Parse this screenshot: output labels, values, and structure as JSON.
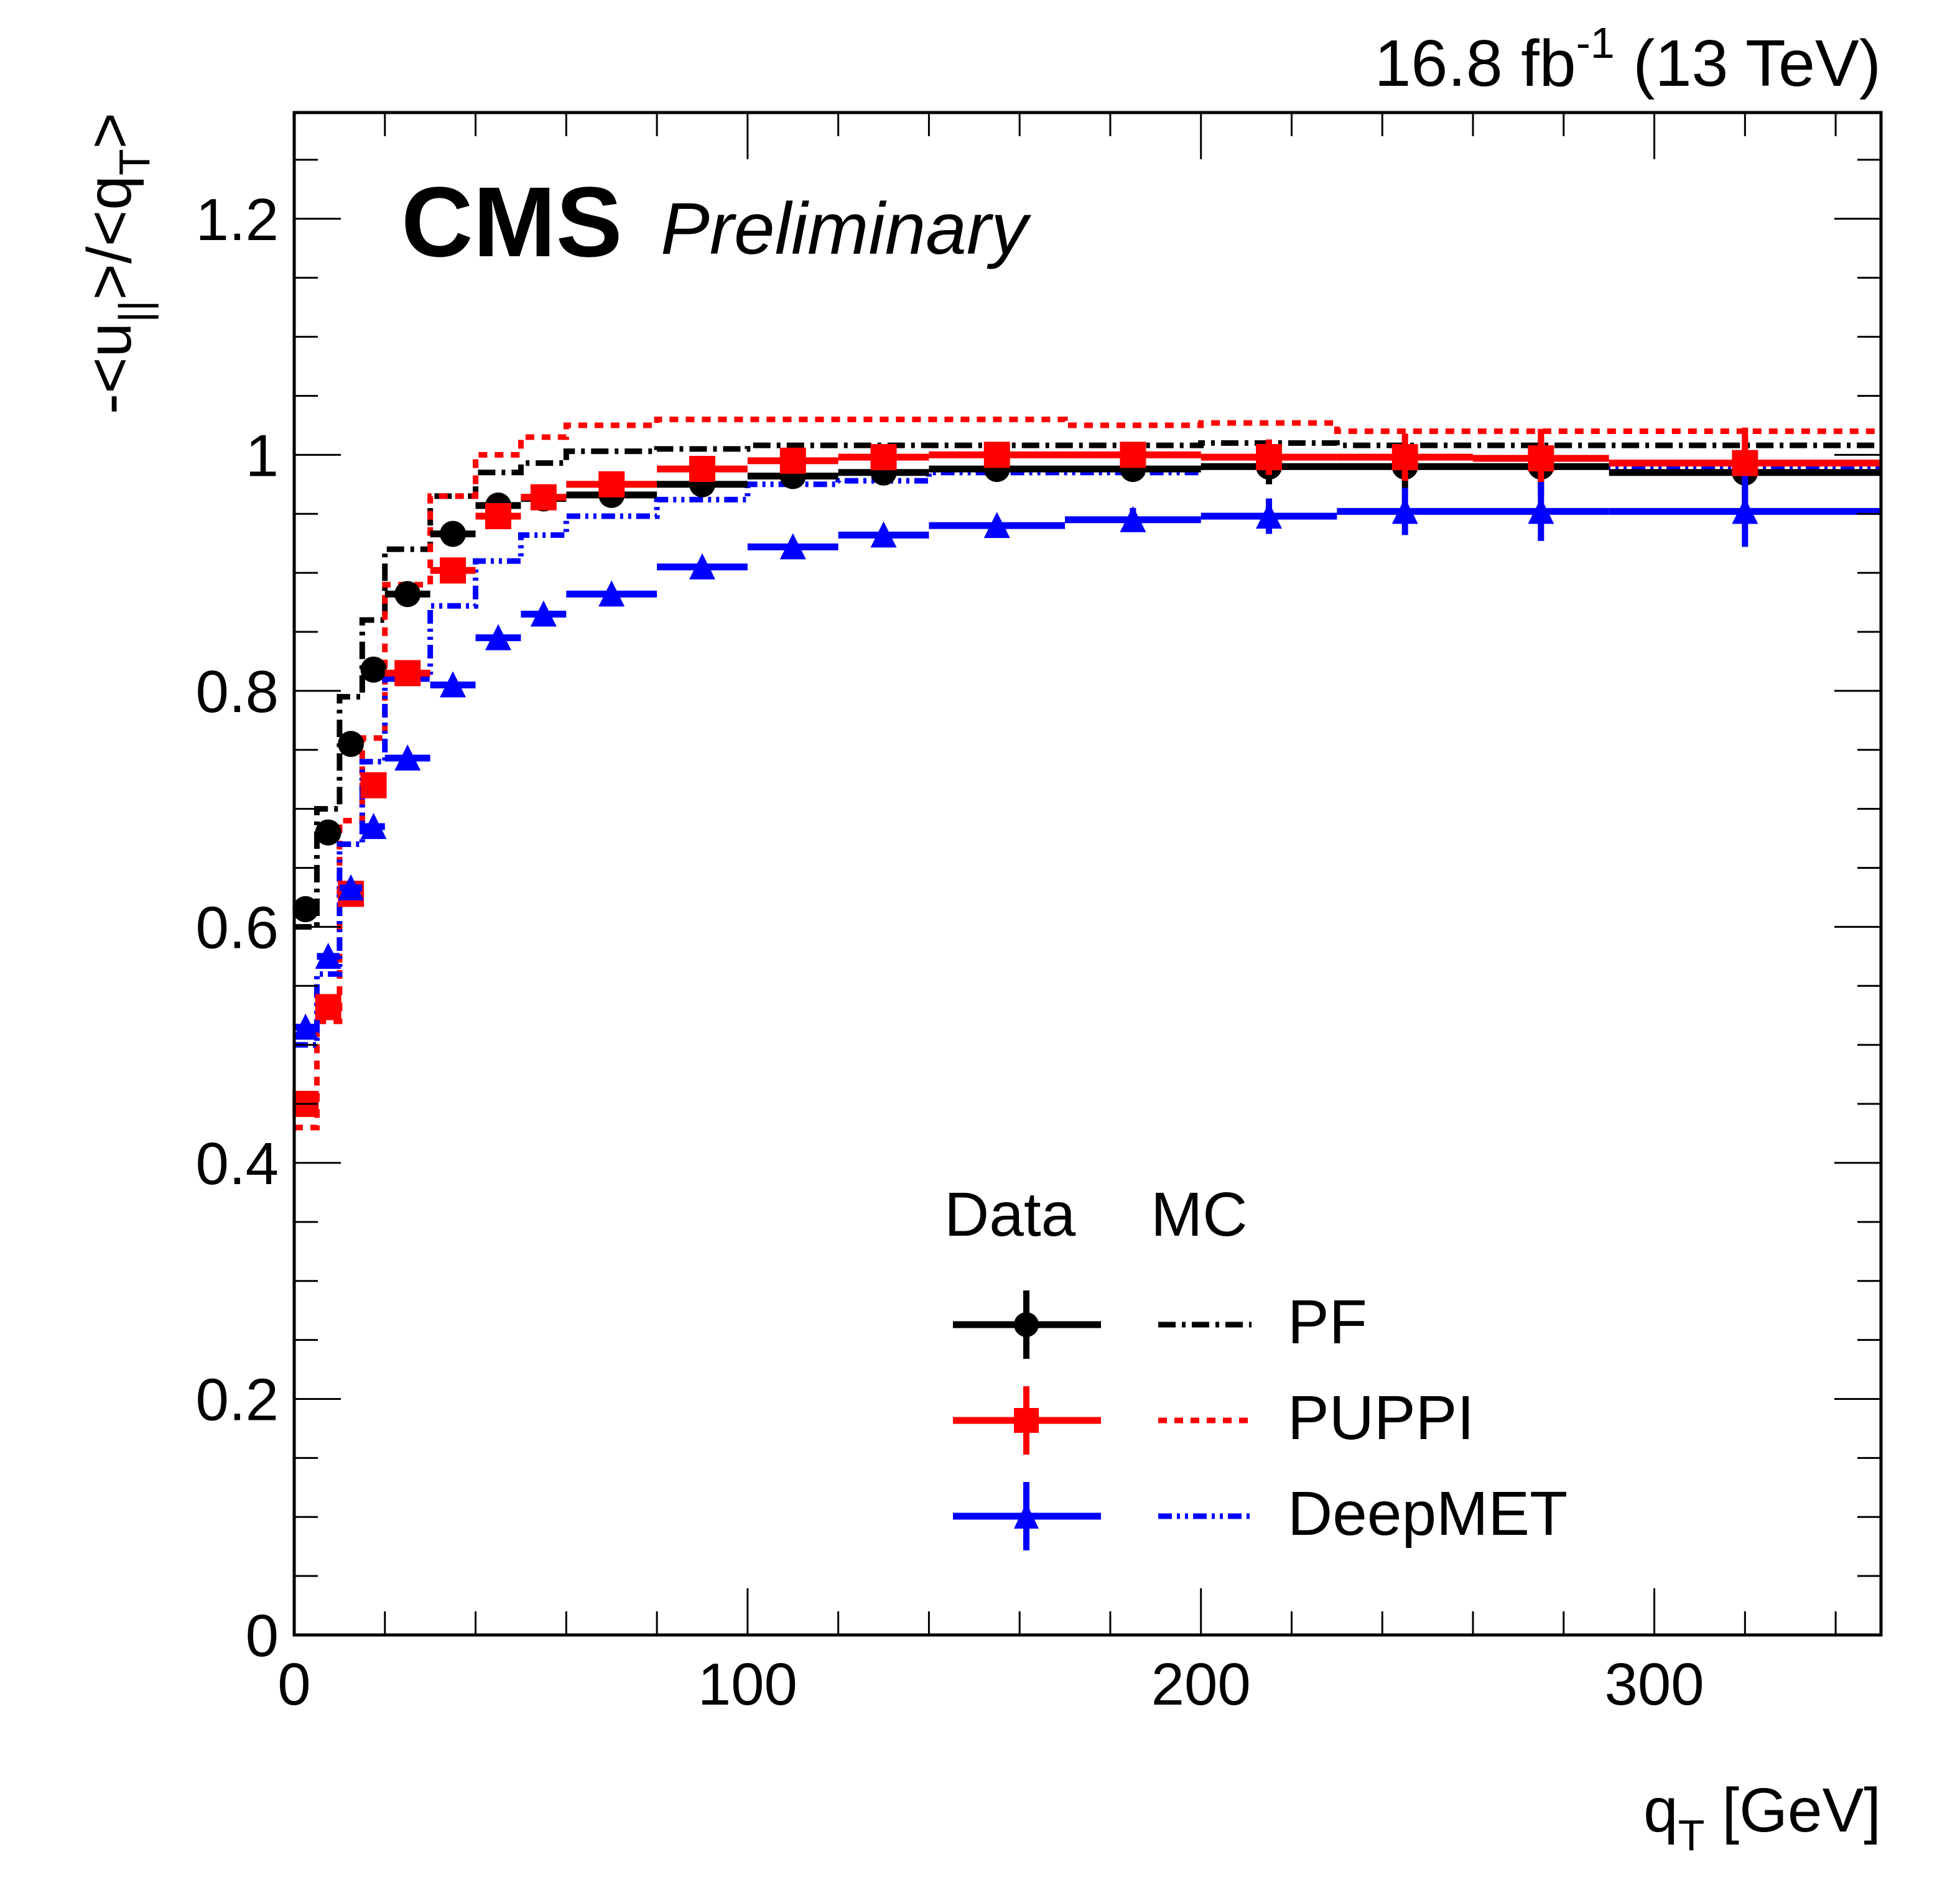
{
  "chart_data": {
    "type": "line",
    "title": "",
    "experiment_label": "CMS",
    "status_label": "Preliminary",
    "lumi_label": {
      "value": "16.8 fb",
      "superscript": "-1",
      "suffix": " (13 TeV)"
    },
    "xlabel": {
      "main": "q",
      "sub": "T",
      "unit": " [GeV]"
    },
    "ylabel": {
      "parts": [
        "-<u",
        "||",
        ">/<q",
        "T",
        ">"
      ]
    },
    "xlim": [
      0,
      350
    ],
    "ylim": [
      0,
      1.29
    ],
    "x_ticks": [
      0,
      100,
      200,
      300
    ],
    "x_tick_labels": [
      "0",
      "100",
      "200",
      "300"
    ],
    "y_ticks": [
      0,
      0.2,
      0.4,
      0.6,
      0.8,
      1,
      1.2
    ],
    "y_tick_labels": [
      "0",
      "0.2",
      "0.4",
      "0.6",
      "0.8",
      "1",
      "1.2"
    ],
    "grid": false,
    "bin_edges": [
      0,
      5,
      10,
      15,
      20,
      30,
      40,
      50,
      60,
      80,
      100,
      120,
      140,
      170,
      200,
      230,
      260,
      290,
      350
    ],
    "x": [
      2.5,
      7.5,
      12.5,
      17.5,
      25,
      35,
      45,
      55,
      70,
      90,
      110,
      130,
      155,
      185,
      215,
      245,
      275,
      320
    ],
    "series": [
      {
        "name": "PF",
        "kind": "data",
        "color": "#000000",
        "marker": "circle",
        "values": [
          0.615,
          0.68,
          0.755,
          0.818,
          0.882,
          0.933,
          0.957,
          0.963,
          0.966,
          0.975,
          0.982,
          0.985,
          0.988,
          0.988,
          0.99,
          0.99,
          0.99,
          0.985
        ],
        "errors": [
          0.003,
          0.003,
          0.003,
          0.003,
          0.003,
          0.003,
          0.003,
          0.003,
          0.003,
          0.004,
          0.005,
          0.006,
          0.007,
          0.01,
          0.015,
          0.02,
          0.025,
          0.03
        ]
      },
      {
        "name": "PUPPI",
        "kind": "data",
        "color": "#ff0000",
        "marker": "square",
        "values": [
          0.45,
          0.532,
          0.628,
          0.72,
          0.815,
          0.902,
          0.948,
          0.964,
          0.975,
          0.988,
          0.995,
          0.998,
          1.0,
          1.0,
          0.998,
          0.998,
          0.997,
          0.993
        ],
        "errors": [
          0.003,
          0.003,
          0.003,
          0.003,
          0.003,
          0.003,
          0.003,
          0.003,
          0.003,
          0.004,
          0.005,
          0.006,
          0.007,
          0.01,
          0.015,
          0.02,
          0.025,
          0.03
        ]
      },
      {
        "name": "DeepMET",
        "kind": "data",
        "color": "#0000ff",
        "marker": "triangle",
        "values": [
          0.515,
          0.575,
          0.633,
          0.685,
          0.743,
          0.805,
          0.845,
          0.865,
          0.882,
          0.905,
          0.922,
          0.932,
          0.94,
          0.945,
          0.948,
          0.952,
          0.952,
          0.952
        ],
        "errors": [
          0.003,
          0.003,
          0.003,
          0.003,
          0.003,
          0.003,
          0.003,
          0.003,
          0.003,
          0.004,
          0.005,
          0.006,
          0.007,
          0.01,
          0.015,
          0.02,
          0.025,
          0.03
        ]
      },
      {
        "name": "PF",
        "kind": "mc",
        "color": "#000000",
        "dash": "dash-dot",
        "values": [
          0.6,
          0.7,
          0.795,
          0.86,
          0.92,
          0.965,
          0.985,
          0.993,
          1.003,
          1.005,
          1.008,
          1.008,
          1.008,
          1.008,
          1.01,
          1.008,
          1.008,
          1.008
        ]
      },
      {
        "name": "PUPPI",
        "kind": "mc",
        "color": "#ff0000",
        "dash": "dotted",
        "values": [
          0.43,
          0.52,
          0.69,
          0.76,
          0.89,
          0.965,
          1.0,
          1.015,
          1.025,
          1.03,
          1.03,
          1.03,
          1.03,
          1.025,
          1.027,
          1.02,
          1.02,
          1.02
        ]
      },
      {
        "name": "DeepMET",
        "kind": "mc",
        "color": "#0000ff",
        "dash": "dash-dot-dot",
        "values": [
          0.5,
          0.56,
          0.67,
          0.74,
          0.81,
          0.872,
          0.91,
          0.932,
          0.948,
          0.962,
          0.975,
          0.978,
          0.985,
          0.985,
          0.99,
          0.99,
          0.99,
          0.99
        ]
      }
    ],
    "legend": {
      "placement": "lower-right",
      "column_headers": [
        "Data",
        "MC"
      ],
      "entries": [
        "PF",
        "PUPPI",
        "DeepMET"
      ]
    }
  }
}
